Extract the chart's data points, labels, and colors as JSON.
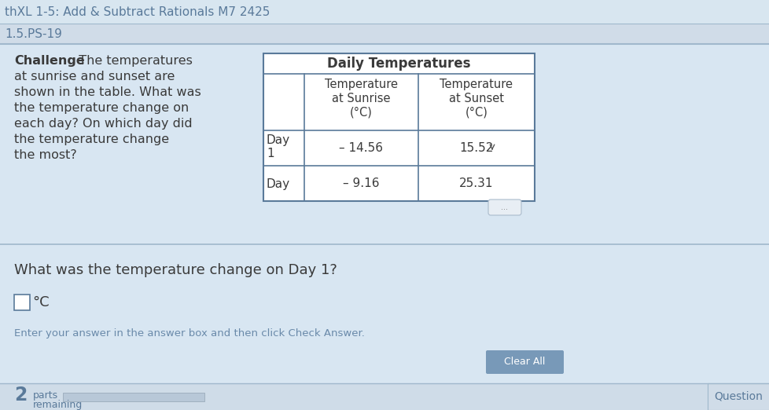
{
  "title": "thXL 1-5: Add & Subtract Rationals M7 2425",
  "subtitle": "1.5.PS-19",
  "background_color": "#cfdce8",
  "text_color": "#5a7a9a",
  "dark_text": "#3a3a3a",
  "challenge_bold": "Challenge",
  "challenge_rest": "  The temperatures\nat sunrise and sunset are\nshown in the table. What was\nthe temperature change on\neach day? On which day did\nthe temperature change\nthe most?",
  "table_title": "Daily Temperatures",
  "col1_header_line1": "Temperature",
  "col1_header_line2": "at Sunrise",
  "col1_header_line3": "(°C)",
  "col2_header_line1": "Temperature",
  "col2_header_line2": "at Sunset",
  "col2_header_line3": "(°C)",
  "row1_day": "Day",
  "row1_day2": "1",
  "row1_col1": "– 14.56",
  "row1_col2": "15.52",
  "row2_day": "Day",
  "row2_col1": "– 9.16",
  "row2_col2": "25.31",
  "question_text": "What was the temperature change on Day 1?",
  "answer_unit": "°C",
  "instruction_text": "Enter your answer in the answer box and then click Check Answer.",
  "check_btn_text": "Clear All",
  "parts_num": "2",
  "parts_label": "parts",
  "parts_label2": "remaining",
  "bottom_right": "Question"
}
